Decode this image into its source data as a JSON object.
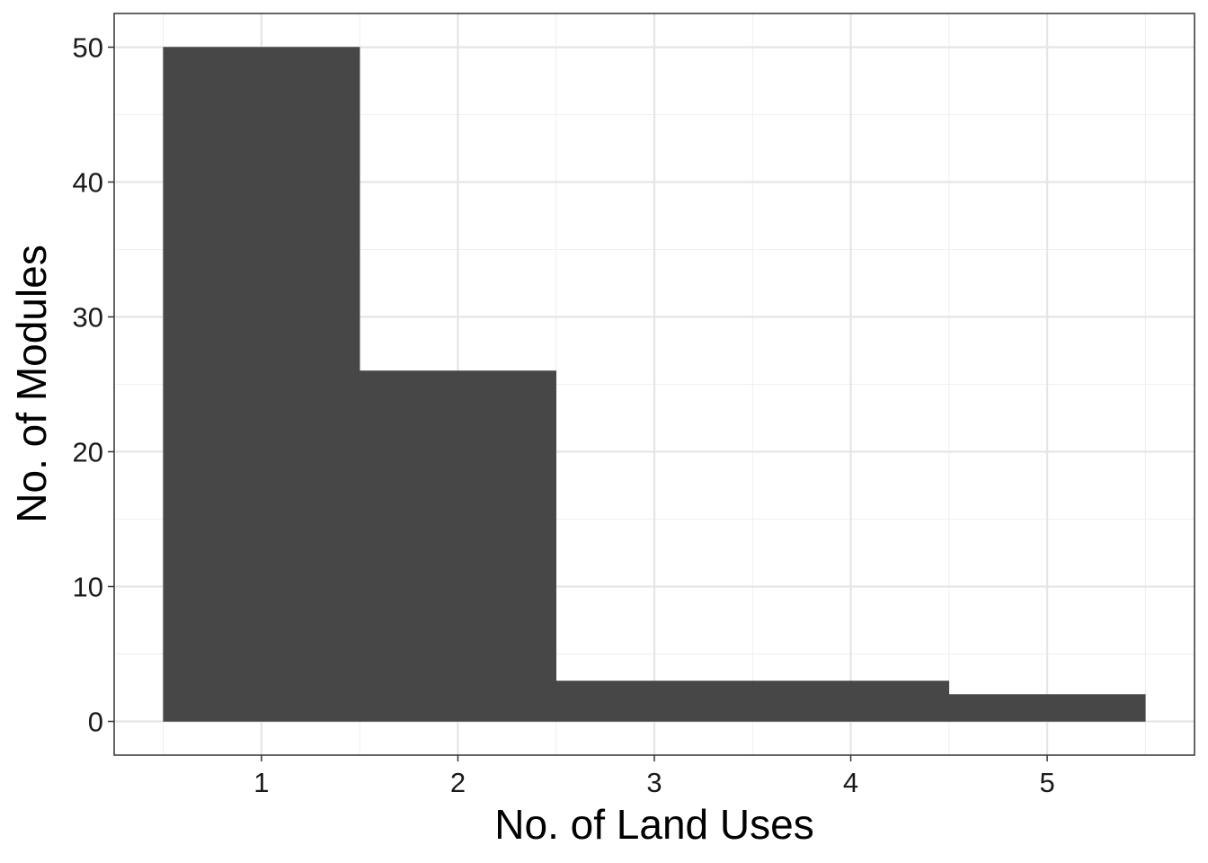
{
  "chart_data": {
    "type": "bar",
    "bins": [
      {
        "x": 1,
        "count": 50
      },
      {
        "x": 2,
        "count": 26
      },
      {
        "x": 3,
        "count": 3
      },
      {
        "x": 4,
        "count": 3
      },
      {
        "x": 5,
        "count": 2
      }
    ],
    "bin_width": 1,
    "xlabel": "No. of Land Uses",
    "ylabel": "No. of Modules",
    "xlim": [
      0.25,
      5.75
    ],
    "ylim": [
      -2.5,
      52.5
    ],
    "x_ticks": [
      1,
      2,
      3,
      4,
      5
    ],
    "y_ticks": [
      0,
      10,
      20,
      30,
      40,
      50
    ],
    "grid": true,
    "bar_color": "#474747",
    "theme": "bw"
  }
}
